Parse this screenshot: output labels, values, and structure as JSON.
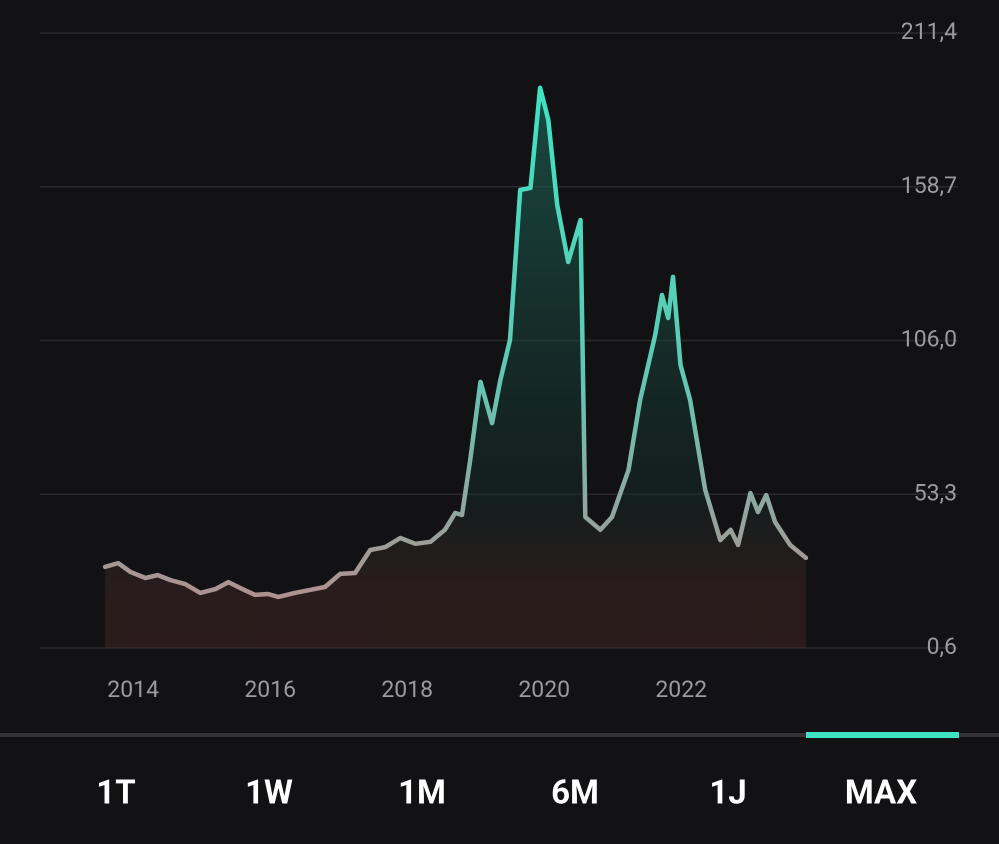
{
  "chart_data": {
    "type": "line",
    "series": [
      {
        "color": "#3fe3c3",
        "x": [
          2013.59,
          2013.78,
          2013.96,
          2014.18,
          2014.36,
          2014.54,
          2014.76,
          2014.98,
          2015.2,
          2015.39,
          2015.56,
          2015.78,
          2015.97,
          2016.12,
          2016.36,
          2016.58,
          2016.8,
          2017.02,
          2017.24,
          2017.46,
          2017.68,
          2017.9,
          2018.12,
          2018.34,
          2018.55,
          2018.7,
          2018.8,
          2018.92,
          2019.07,
          2019.24,
          2019.36,
          2019.5,
          2019.65,
          2019.8,
          2019.94,
          2020.06,
          2020.19,
          2020.35,
          2020.53,
          2020.6,
          2020.82,
          2020.99,
          2021.23,
          2021.4,
          2021.62,
          2021.72,
          2021.81,
          2021.88,
          2021.99,
          2022.13,
          2022.35,
          2022.57,
          2022.72,
          2022.83,
          2023.01,
          2023.12,
          2023.24,
          2023.37,
          2023.59,
          2023.82
        ],
        "values": [
          28.4,
          29.7,
          26.7,
          24.6,
          25.6,
          23.9,
          22.5,
          19.5,
          20.8,
          23.2,
          21.2,
          18.8,
          19.1,
          18.1,
          19.5,
          20.5,
          21.5,
          26.0,
          26.3,
          34.2,
          35.2,
          38.3,
          36.3,
          37.0,
          41.1,
          46.9,
          46.2,
          65.0,
          91.8,
          77.7,
          92.5,
          106.2,
          157.6,
          158.3,
          192.6,
          181.6,
          152.5,
          132.9,
          147.3,
          45.5,
          41.1,
          45.5,
          61.6,
          85.6,
          107.9,
          121.6,
          113.7,
          127.8,
          97.6,
          85.6,
          54.8,
          37.6,
          41.1,
          35.9,
          53.7,
          47.2,
          53.0,
          43.8,
          35.9,
          31.5
        ]
      }
    ],
    "xlim": [
      2012.64,
      2026.04
    ],
    "xticks": [
      2014,
      2016,
      2018,
      2020,
      2022
    ],
    "ylim": [
      0.6,
      211.4
    ],
    "yticks": [
      {
        "value": 0.6,
        "label": "0,6"
      },
      {
        "value": 53.3,
        "label": "53,3"
      },
      {
        "value": 106.0,
        "label": "106,0"
      },
      {
        "value": 158.7,
        "label": "158,7"
      },
      {
        "value": 211.4,
        "label": "211,4"
      }
    ],
    "grid": true
  },
  "tabs": [
    "1T",
    "1W",
    "1M",
    "6M",
    "1J",
    "MAX"
  ],
  "active_tab": 5
}
